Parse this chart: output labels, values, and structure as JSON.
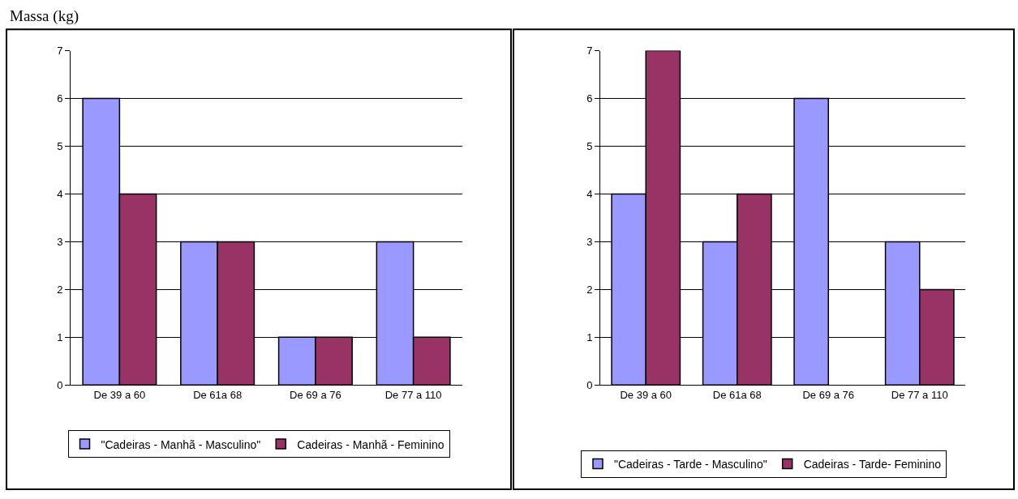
{
  "chart_data": [
    {
      "type": "bar",
      "annotations": [
        "Massa (kg)"
      ],
      "categories": [
        "De 39 a 60",
        "De 61a 68",
        "De 69 a 76",
        "De 77 a 110"
      ],
      "series": [
        {
          "name": "\"Cadeiras - Manhã - Masculino\"",
          "color": "#9999ff",
          "values": [
            6,
            3,
            1,
            3
          ]
        },
        {
          "name": "Cadeiras - Manhã - Feminino",
          "color": "#993366",
          "values": [
            4,
            3,
            1,
            1
          ]
        }
      ],
      "ylim": [
        0,
        7
      ],
      "yticks": [
        0,
        1,
        2,
        3,
        4,
        5,
        6,
        7
      ],
      "grid": "y",
      "legend": "bottom"
    },
    {
      "type": "bar",
      "categories": [
        "De 39 a 60",
        "De 61a 68",
        "De 69 a 76",
        "De 77 a 110"
      ],
      "series": [
        {
          "name": "\"Cadeiras - Tarde - Masculino\"",
          "color": "#9999ff",
          "values": [
            4,
            3,
            6,
            3
          ]
        },
        {
          "name": "Cadeiras - Tarde- Feminino",
          "color": "#993366",
          "values": [
            7,
            4,
            null,
            2
          ]
        }
      ],
      "ylim": [
        0,
        7
      ],
      "yticks": [
        0,
        1,
        2,
        3,
        4,
        5,
        6,
        7
      ],
      "grid": "y",
      "legend": "bottom"
    }
  ]
}
